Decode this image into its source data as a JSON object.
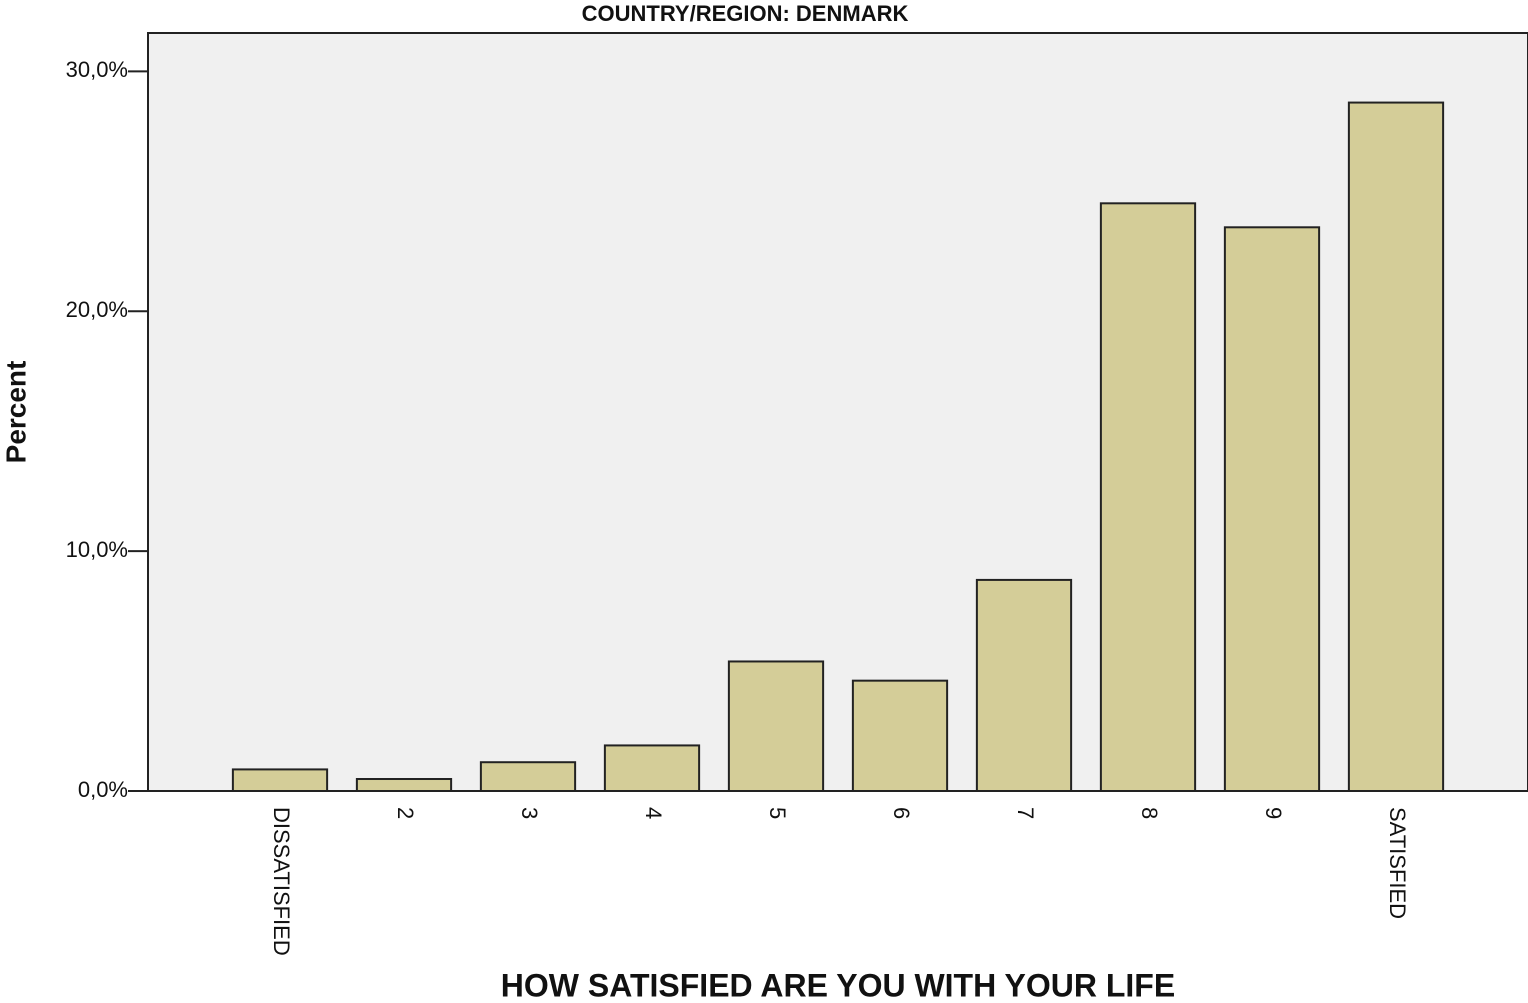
{
  "chart_data": {
    "type": "bar",
    "title": "COUNTRY/REGION: DENMARK",
    "x_label": "HOW SATISFIED ARE YOU WITH YOUR LIFE",
    "y_label": "Percent",
    "categories": [
      "DISSATISFIED",
      "2",
      "3",
      "4",
      "5",
      "6",
      "7",
      "8",
      "9",
      "SATISFIED"
    ],
    "values": [
      0.9,
      0.5,
      1.2,
      1.9,
      5.4,
      4.6,
      8.8,
      24.5,
      23.5,
      28.7
    ],
    "color": "#d4cd98",
    "ylim": [
      0,
      31.6
    ],
    "yticks": [
      {
        "value": 0,
        "label": "0,0%"
      },
      {
        "value": 10,
        "label": "10,0%"
      },
      {
        "value": 20,
        "label": "20,0%"
      },
      {
        "value": 30,
        "label": "30,0%"
      }
    ],
    "grid": false
  }
}
